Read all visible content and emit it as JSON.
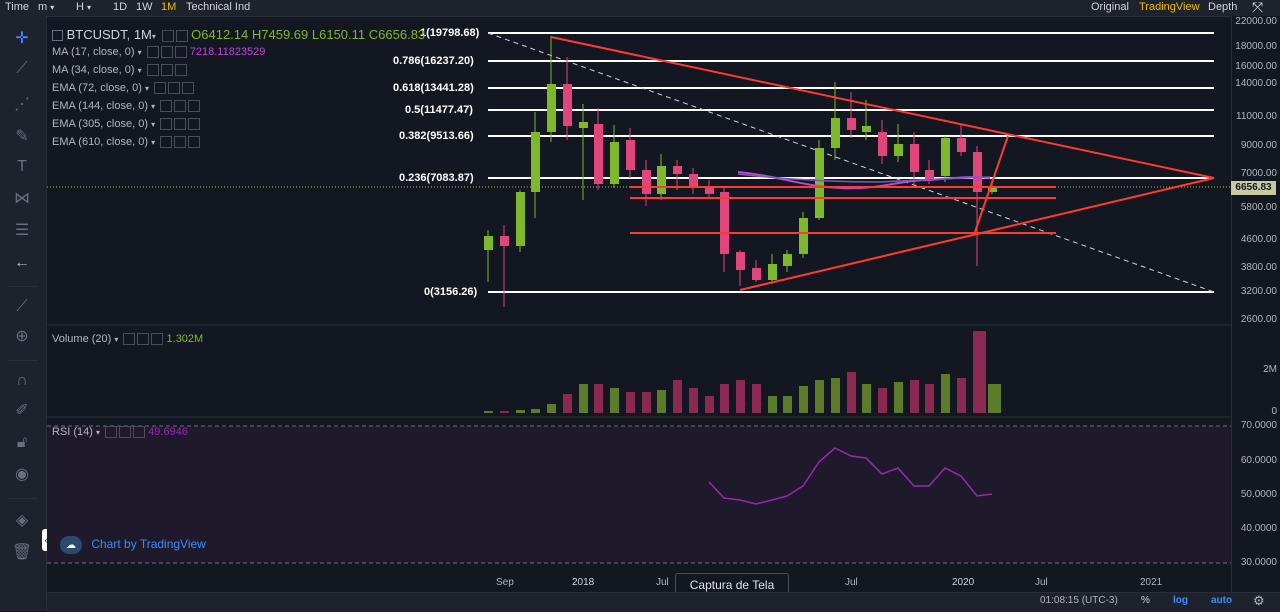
{
  "topbar": {
    "left_items": [
      "Time",
      "m",
      "H",
      "1D",
      "1W",
      "1M",
      "Technical Ind"
    ],
    "active_item": "1M",
    "right_items": [
      "Original",
      "TradingView",
      "Depth"
    ],
    "active_view": "TradingView"
  },
  "symbol": {
    "name": "BTCUSDT",
    "interval": "1M",
    "open": "O6412.14",
    "high": "H7459.69",
    "low": "L6150.11",
    "close": "C6656.83"
  },
  "indicators": [
    {
      "label": "MA (17, close, 0)",
      "value": "7218.11823529"
    },
    {
      "label": "MA (34, close, 0)",
      "value": ""
    },
    {
      "label": "EMA (72, close, 0)",
      "value": ""
    },
    {
      "label": "EMA (144, close, 0)",
      "value": ""
    },
    {
      "label": "EMA (305, close, 0)",
      "value": ""
    },
    {
      "label": "EMA (610, close, 0)",
      "value": ""
    }
  ],
  "fib_levels": [
    {
      "label": "1(19798.68)"
    },
    {
      "label": "0.786(16237.20)"
    },
    {
      "label": "0.618(13441.28)"
    },
    {
      "label": "0.5(11477.47)"
    },
    {
      "label": "0.382(9513.66)"
    },
    {
      "label": "0.236(7083.87)"
    },
    {
      "label": "0(3156.26)"
    }
  ],
  "price_axis": [
    "22000.00",
    "18000.00",
    "16000.00",
    "14000.00",
    "11000.00",
    "9000.00",
    "7000.00",
    "5800.00",
    "4600.00",
    "3800.00",
    "3200.00",
    "2600.00"
  ],
  "last_price": "6656.83",
  "volume": {
    "label": "Volume (20)",
    "value": "1.302M",
    "axis": [
      "2M",
      "0"
    ]
  },
  "rsi": {
    "label": "RSI (14)",
    "value": "49.6946",
    "axis": [
      "70.0000",
      "60.0000",
      "50.0000",
      "40.0000",
      "30.0000"
    ]
  },
  "time_axis": [
    "Sep",
    "2018",
    "Jul",
    "Jul",
    "2020",
    "Jul",
    "2021"
  ],
  "watermark": "Chart by TradingView",
  "tooltip": "Captura de Tela",
  "bottombar": {
    "time": "01:08:15 (UTC-3)",
    "percent": "%",
    "log": "log",
    "auto": "auto"
  },
  "colors": {
    "up": "#7fb82b",
    "down": "#e0457b",
    "trendline": "#ff3b30",
    "fib": "#ffffff",
    "accent": "#f0b90b",
    "rsi": "#9c27b0",
    "link": "#3d8bfd"
  },
  "icons": [
    "crosshair-icon",
    "trendline-icon",
    "fib-icon",
    "brush-icon",
    "text-icon",
    "pattern-icon",
    "measure-icon",
    "arrow-left-icon",
    "ruler-icon",
    "zoom-icon",
    "magnet-icon",
    "lock-draw-icon",
    "lock-icon",
    "eye-icon",
    "layers-icon",
    "trash-icon"
  ]
}
